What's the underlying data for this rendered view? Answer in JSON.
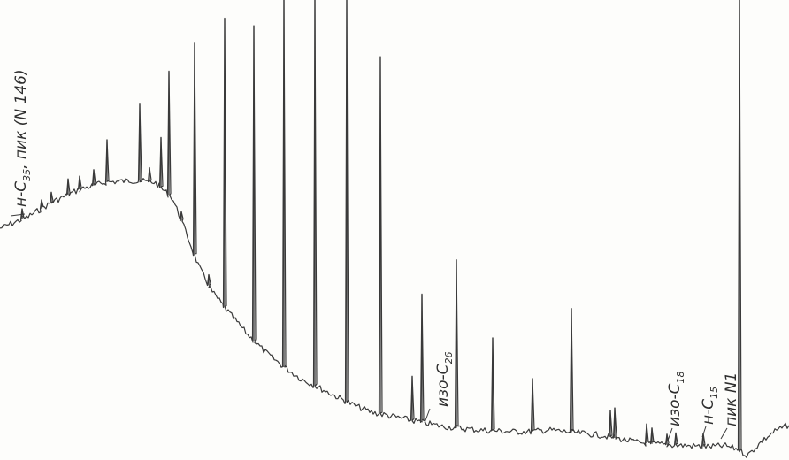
{
  "chart_data": {
    "type": "line",
    "title": "",
    "xlabel": "",
    "ylabel": "",
    "grid": false,
    "annotations": [
      {
        "id": "n-c35",
        "main": "н-C",
        "sub": "35",
        "rest": ", пик (N 146)"
      },
      {
        "id": "iso-c26",
        "main": "изо-C",
        "sub": "26",
        "rest": ""
      },
      {
        "id": "iso-c18",
        "main": "изо-C",
        "sub": "18",
        "rest": ""
      },
      {
        "id": "n-c15",
        "main": "н-C",
        "sub": "15",
        "rest": ""
      },
      {
        "id": "peak-n1",
        "main": "пик N1",
        "sub": "",
        "rest": ""
      }
    ],
    "baseline": [
      [
        0,
        258
      ],
      [
        30,
        246
      ],
      [
        60,
        228
      ],
      [
        90,
        214
      ],
      [
        120,
        206
      ],
      [
        150,
        204
      ],
      [
        175,
        206
      ],
      [
        195,
        224
      ],
      [
        210,
        262
      ],
      [
        225,
        302
      ],
      [
        240,
        330
      ],
      [
        260,
        355
      ],
      [
        280,
        378
      ],
      [
        300,
        398
      ],
      [
        320,
        414
      ],
      [
        340,
        428
      ],
      [
        360,
        438
      ],
      [
        380,
        448
      ],
      [
        400,
        458
      ],
      [
        420,
        466
      ],
      [
        440,
        470
      ],
      [
        460,
        474
      ],
      [
        480,
        478
      ],
      [
        500,
        482
      ],
      [
        520,
        484
      ],
      [
        540,
        486
      ],
      [
        560,
        487
      ],
      [
        580,
        488
      ],
      [
        600,
        488
      ],
      [
        620,
        486
      ],
      [
        640,
        488
      ],
      [
        660,
        490
      ],
      [
        680,
        492
      ],
      [
        700,
        496
      ],
      [
        720,
        500
      ],
      [
        740,
        502
      ],
      [
        760,
        503
      ],
      [
        780,
        504
      ],
      [
        800,
        505
      ],
      [
        820,
        504
      ],
      [
        835,
        508
      ],
      [
        845,
        515
      ],
      [
        860,
        500
      ],
      [
        875,
        488
      ],
      [
        892,
        480
      ]
    ],
    "peaks": [
      {
        "x": 25,
        "height": 12
      },
      {
        "x": 47,
        "height": 10
      },
      {
        "x": 58,
        "height": 12
      },
      {
        "x": 77,
        "height": 18
      },
      {
        "x": 90,
        "height": 15
      },
      {
        "x": 106,
        "height": 18
      },
      {
        "x": 121,
        "height": 48
      },
      {
        "x": 158,
        "height": 87
      },
      {
        "x": 169,
        "height": 16
      },
      {
        "x": 182,
        "height": 57
      },
      {
        "x": 191,
        "height": 140
      },
      {
        "x": 205,
        "height": 10
      },
      {
        "x": 220,
        "height": 240
      },
      {
        "x": 236,
        "height": 12
      },
      {
        "x": 254,
        "height": 327
      },
      {
        "x": 287,
        "height": 356
      },
      {
        "x": 321,
        "height": 550
      },
      {
        "x": 356,
        "height": 505
      },
      {
        "x": 392,
        "height": 545
      },
      {
        "x": 430,
        "height": 404
      },
      {
        "x": 466,
        "height": 50
      },
      {
        "x": 477,
        "height": 145
      },
      {
        "x": 516,
        "height": 190
      },
      {
        "x": 557,
        "height": 105
      },
      {
        "x": 602,
        "height": 60
      },
      {
        "x": 646,
        "height": 140
      },
      {
        "x": 690,
        "height": 30
      },
      {
        "x": 695,
        "height": 34
      },
      {
        "x": 731,
        "height": 22
      },
      {
        "x": 737,
        "height": 18
      },
      {
        "x": 754,
        "height": 12
      },
      {
        "x": 764,
        "height": 14
      },
      {
        "x": 795,
        "height": 15
      },
      {
        "x": 836,
        "height": 560
      }
    ]
  }
}
